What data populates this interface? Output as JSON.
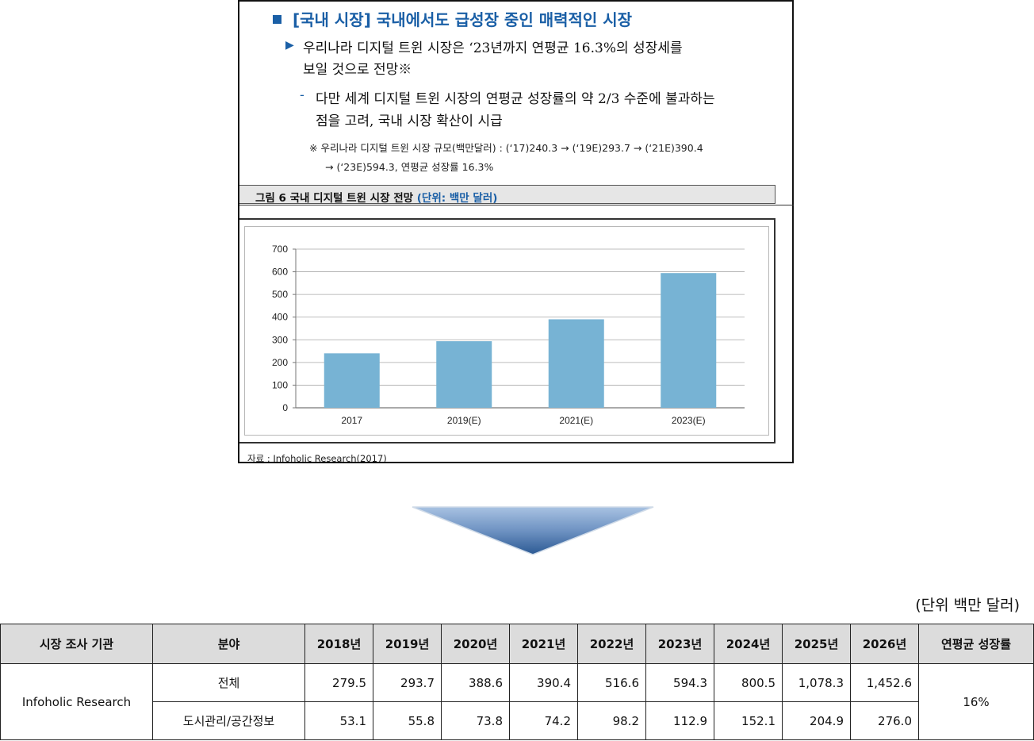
{
  "doc": {
    "heading": "[국내 시장] 국내에서도 급성장 중인 매력적인 시장",
    "bullet1": {
      "line1": "우리나라 디지털 트윈 시장은 ‘23년까지 연평균 16.3%의 성장세를",
      "line2": "보일 것으로 전망※"
    },
    "bullet2": {
      "line1": "다만 세계 디지털 트윈 시장의 연평균 성장률의 약 2/3 수준에 불과하는",
      "line2": "점을 고려, 국내 시장 확산이 시급"
    },
    "note": {
      "line1": "※ 우리나라 디지털 트윈 시장 규모(백만달러) : (‘17)240.3 → (‘19E)293.7 → (‘21E)390.4",
      "line2": "→ (‘23E)594.3, 연평균 성장률 16.3%"
    },
    "figure_label": "그림 6    국내 디지털 트윈 시장 전망",
    "figure_unit": "(단위: 백만 달러)",
    "source": "자료 :  Infoholic Research(2017)"
  },
  "chart_data": {
    "type": "bar",
    "categories": [
      "2017",
      "2019(E)",
      "2021(E)",
      "2023(E)"
    ],
    "values": [
      240.3,
      293.7,
      390.4,
      594.3
    ],
    "ylim": [
      0,
      700
    ],
    "yticks": [
      0,
      100,
      200,
      300,
      400,
      500,
      600,
      700
    ],
    "grid": true,
    "bar_color": "#77b3d4"
  },
  "table": {
    "unit_label": "(단위 백만 달러)",
    "headers": [
      "시장 조사 기관",
      "분야",
      "2018년",
      "2019년",
      "2020년",
      "2021년",
      "2022년",
      "2023년",
      "2024년",
      "2025년",
      "2026년",
      "연평균 성장률"
    ],
    "source_org": "Infoholic Research",
    "rows": [
      {
        "field": "전체",
        "values": [
          "279.5",
          "293.7",
          "388.6",
          "390.4",
          "516.6",
          "594.3",
          "800.5",
          "1,078.3",
          "1,452.6"
        ]
      },
      {
        "field": "도시관리/공간정보",
        "values": [
          "53.1",
          "55.8",
          "73.8",
          "74.2",
          "98.2",
          "112.9",
          "152.1",
          "204.9",
          "276.0"
        ]
      }
    ],
    "cagr": "16%"
  },
  "colors": {
    "accent": "#1a5fa6",
    "bar": "#77b3d4",
    "header_bg": "#dcdcdc"
  }
}
